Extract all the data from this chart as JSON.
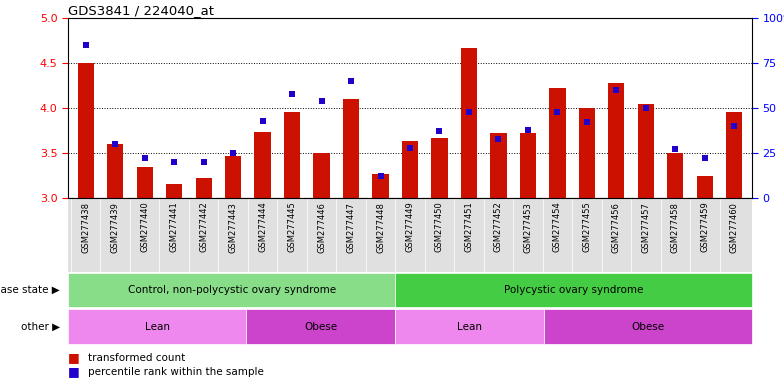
{
  "title": "GDS3841 / 224040_at",
  "samples": [
    "GSM277438",
    "GSM277439",
    "GSM277440",
    "GSM277441",
    "GSM277442",
    "GSM277443",
    "GSM277444",
    "GSM277445",
    "GSM277446",
    "GSM277447",
    "GSM277448",
    "GSM277449",
    "GSM277450",
    "GSM277451",
    "GSM277452",
    "GSM277453",
    "GSM277454",
    "GSM277455",
    "GSM277456",
    "GSM277457",
    "GSM277458",
    "GSM277459",
    "GSM277460"
  ],
  "transformed_count": [
    4.5,
    3.6,
    3.35,
    3.16,
    3.22,
    3.47,
    3.73,
    3.95,
    3.5,
    4.1,
    3.27,
    3.63,
    3.67,
    4.67,
    3.72,
    3.72,
    4.22,
    4.0,
    4.28,
    4.05,
    3.5,
    3.25,
    3.95
  ],
  "percentile_rank": [
    85,
    30,
    22,
    20,
    20,
    25,
    43,
    58,
    54,
    65,
    12,
    28,
    37,
    48,
    33,
    38,
    48,
    42,
    60,
    50,
    27,
    22,
    40
  ],
  "ylim_left": [
    3.0,
    5.0
  ],
  "ylim_right": [
    0,
    100
  ],
  "yticks_left": [
    3.0,
    3.5,
    4.0,
    4.5,
    5.0
  ],
  "yticks_right": [
    0,
    25,
    50,
    75,
    100
  ],
  "ytick_labels_right": [
    "0",
    "25",
    "50",
    "75",
    "100%"
  ],
  "bar_color": "#cc1100",
  "dot_color": "#2200cc",
  "disease_state_groups": [
    {
      "label": "Control, non-polycystic ovary syndrome",
      "start": 0,
      "end": 10,
      "color": "#88dd88"
    },
    {
      "label": "Polycystic ovary syndrome",
      "start": 11,
      "end": 22,
      "color": "#44cc44"
    }
  ],
  "other_groups": [
    {
      "label": "Lean",
      "start": 0,
      "end": 5,
      "color": "#ee88ee"
    },
    {
      "label": "Obese",
      "start": 6,
      "end": 10,
      "color": "#cc44cc"
    },
    {
      "label": "Lean",
      "start": 11,
      "end": 15,
      "color": "#ee88ee"
    },
    {
      "label": "Obese",
      "start": 16,
      "end": 22,
      "color": "#cc44cc"
    }
  ],
  "disease_state_label": "disease state",
  "other_label": "other",
  "legend_items": [
    {
      "label": "transformed count",
      "color": "#cc1100",
      "marker": "s"
    },
    {
      "label": "percentile rank within the sample",
      "color": "#2200cc",
      "marker": "s"
    }
  ]
}
